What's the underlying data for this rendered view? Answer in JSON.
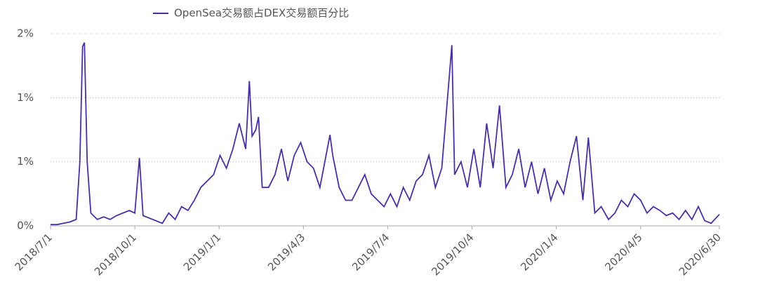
{
  "chart_data": {
    "type": "line",
    "series": [
      {
        "name": "OpenSea交易额占DEX交易额百分比",
        "color": "#4a2f9e",
        "values": [
          0.01,
          0.01,
          0.02,
          0.03,
          0.05,
          0.5,
          1.4,
          1.43,
          0.5,
          0.1,
          0.05,
          0.07,
          0.05,
          0.08,
          0.1,
          0.12,
          0.1,
          0.53,
          0.08,
          0.06,
          0.04,
          0.02,
          0.1,
          0.05,
          0.15,
          0.12,
          0.2,
          0.3,
          0.35,
          0.4,
          0.55,
          0.45,
          0.6,
          0.8,
          0.6,
          1.13,
          0.7,
          0.75,
          0.85,
          0.3,
          0.3,
          0.4,
          0.6,
          0.35,
          0.55,
          0.65,
          0.5,
          0.45,
          0.3,
          0.71,
          0.55,
          0.3,
          0.2,
          0.2,
          0.3,
          0.4,
          0.25,
          0.2,
          0.15,
          0.25,
          0.15,
          0.3,
          0.2,
          0.35,
          0.4,
          0.55,
          0.3,
          0.45,
          1.41,
          0.4,
          0.5,
          0.3,
          0.6,
          0.3,
          0.8,
          0.45,
          0.94,
          0.3,
          0.4,
          0.6,
          0.3,
          0.5,
          0.25,
          0.45,
          0.2,
          0.35,
          0.25,
          0.5,
          0.7,
          0.2,
          0.69,
          0.1,
          0.15,
          0.05,
          0.1,
          0.2,
          0.15,
          0.25,
          0.2,
          0.1,
          0.15,
          0.12,
          0.08,
          0.1,
          0.05,
          0.12,
          0.05,
          0.15,
          0.04,
          0.02,
          0.09
        ]
      }
    ],
    "x": [
      "2018/7/1",
      "2018/7/8",
      "2018/7/15",
      "2018/7/22",
      "2018/7/29",
      "2018/8/2",
      "2018/8/5",
      "2018/8/7",
      "2018/8/10",
      "2018/8/14",
      "2018/8/21",
      "2018/8/28",
      "2018/9/4",
      "2018/9/11",
      "2018/9/18",
      "2018/9/25",
      "2018/10/1",
      "2018/10/6",
      "2018/10/10",
      "2018/10/17",
      "2018/10/24",
      "2018/10/31",
      "2018/11/7",
      "2018/11/14",
      "2018/11/21",
      "2018/11/28",
      "2018/12/5",
      "2018/12/12",
      "2018/12/19",
      "2018/12/26",
      "2019/1/2",
      "2019/1/9",
      "2019/1/16",
      "2019/1/23",
      "2019/1/30",
      "2019/2/3",
      "2019/2/6",
      "2019/2/10",
      "2019/2/13",
      "2019/2/17",
      "2019/2/24",
      "2019/3/3",
      "2019/3/10",
      "2019/3/17",
      "2019/3/24",
      "2019/3/31",
      "2019/4/7",
      "2019/4/14",
      "2019/4/21",
      "2019/5/2",
      "2019/5/5",
      "2019/5/12",
      "2019/5/19",
      "2019/5/26",
      "2019/6/2",
      "2019/6/9",
      "2019/6/16",
      "2019/6/23",
      "2019/6/30",
      "2019/7/7",
      "2019/7/14",
      "2019/7/21",
      "2019/7/28",
      "2019/8/4",
      "2019/8/11",
      "2019/8/18",
      "2019/8/25",
      "2019/9/1",
      "2019/9/12",
      "2019/9/15",
      "2019/9/22",
      "2019/9/29",
      "2019/10/6",
      "2019/10/13",
      "2019/10/20",
      "2019/10/27",
      "2019/11/3",
      "2019/11/10",
      "2019/11/17",
      "2019/11/24",
      "2019/12/1",
      "2019/12/8",
      "2019/12/15",
      "2019/12/22",
      "2019/12/29",
      "2020/1/5",
      "2020/1/12",
      "2020/1/19",
      "2020/1/26",
      "2020/2/2",
      "2020/2/8",
      "2020/2/15",
      "2020/2/22",
      "2020/3/1",
      "2020/3/8",
      "2020/3/15",
      "2020/3/22",
      "2020/3/29",
      "2020/4/5",
      "2020/4/12",
      "2020/4/19",
      "2020/4/26",
      "2020/5/3",
      "2020/5/10",
      "2020/5/17",
      "2020/5/24",
      "2020/5/31",
      "2020/6/7",
      "2020/6/14",
      "2020/6/21",
      "2020/6/30"
    ],
    "xlim": [
      "2018/7/1",
      "2020/6/30"
    ],
    "xticks": [
      "2018/7/1",
      "2018/10/1",
      "2019/1/1",
      "2019/4/3",
      "2019/7/4",
      "2019/10/4",
      "2020/1/4",
      "2020/4/5",
      "2020/6/30"
    ],
    "ylim": [
      0,
      1.5
    ],
    "yticks": [
      {
        "value": 0,
        "label": "0%"
      },
      {
        "value": 0.5,
        "label": "1%"
      },
      {
        "value": 1,
        "label": "1%"
      },
      {
        "value": 1.5,
        "label": "2%"
      }
    ],
    "grid": true,
    "legend": "top"
  }
}
